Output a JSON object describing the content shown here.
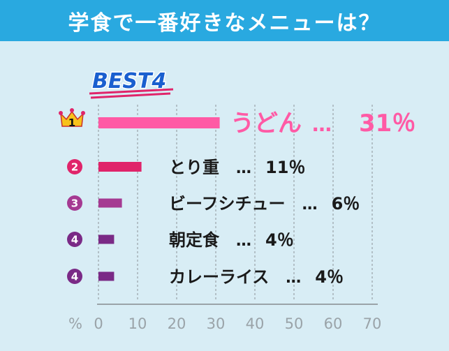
{
  "header": {
    "title": "学食で一番好きなメニューは？"
  },
  "badge": {
    "text": "BEST4"
  },
  "colors": {
    "header_bg": "#29a9e0",
    "background": "#d8edf5",
    "rank1": "#ff5aa5",
    "rank2": "#e0246a",
    "rank3": "#a53a92",
    "rank4": "#7a2a86",
    "badge": "#1a5fcf",
    "crown": "#f7c21a",
    "axis": "#9aa3a8"
  },
  "chart_data": {
    "type": "bar",
    "orientation": "horizontal",
    "title": "学食で一番好きなメニューは？",
    "xlabel": "%",
    "xlim": [
      0,
      70
    ],
    "xticks": [
      "0",
      "10",
      "20",
      "30",
      "40",
      "50",
      "60",
      "70"
    ],
    "grid": true,
    "items": [
      {
        "rank": "1",
        "name": "うどん",
        "value": 31,
        "label": "31％",
        "color": "#ff5aa5"
      },
      {
        "rank": "2",
        "name": "とり重",
        "value": 11,
        "label": "11％",
        "color": "#e0246a"
      },
      {
        "rank": "3",
        "name": "ビーフシチュー",
        "value": 6,
        "label": "6％",
        "color": "#a53a92"
      },
      {
        "rank": "4",
        "name": "朝定食",
        "value": 4,
        "label": "4％",
        "color": "#7a2a86"
      },
      {
        "rank": "4",
        "name": "カレーライス",
        "value": 4,
        "label": "4％",
        "color": "#7a2a86"
      }
    ],
    "separator": "…"
  }
}
